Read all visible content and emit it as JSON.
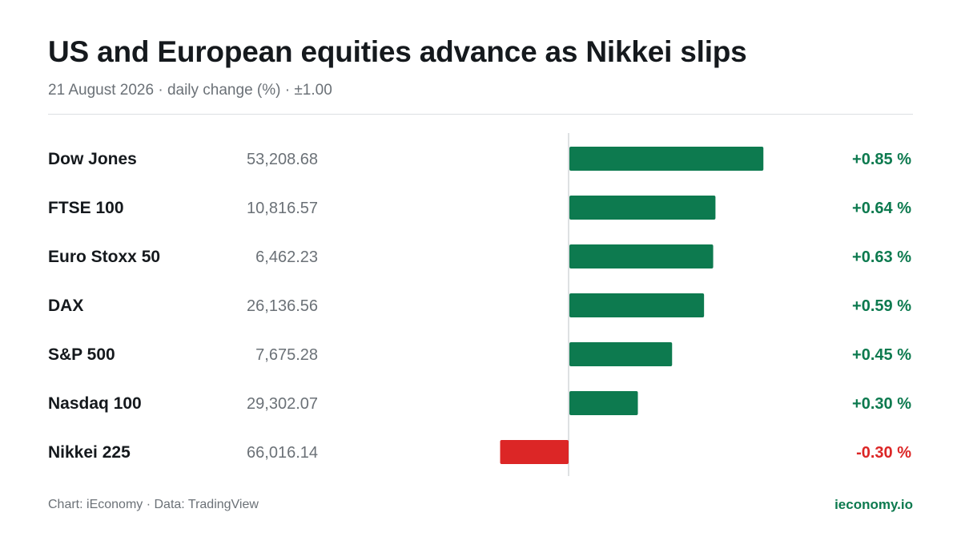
{
  "header": {
    "title": "US and European equities advance as Nikkei slips",
    "subtitle": "21 August 2026 · daily change (%) · ±1.00"
  },
  "footer": {
    "credit": "Chart: iEconomy · Data: TradingView",
    "brand": "ieconomy.io"
  },
  "colors": {
    "positive": "#0d7a4f",
    "negative": "#dc2626",
    "axis": "#d4d7da"
  },
  "chart_data": {
    "type": "bar",
    "orientation": "horizontal",
    "xlim": [
      -1.0,
      1.0
    ],
    "unit": "%",
    "rows": [
      {
        "name": "Dow Jones",
        "level": "53,208.68",
        "change": 0.85,
        "label": "+0.85 %"
      },
      {
        "name": "FTSE 100",
        "level": "10,816.57",
        "change": 0.64,
        "label": "+0.64 %"
      },
      {
        "name": "Euro Stoxx 50",
        "level": "6,462.23",
        "change": 0.63,
        "label": "+0.63 %"
      },
      {
        "name": "DAX",
        "level": "26,136.56",
        "change": 0.59,
        "label": "+0.59 %"
      },
      {
        "name": "S&P 500",
        "level": "7,675.28",
        "change": 0.45,
        "label": "+0.45 %"
      },
      {
        "name": "Nasdaq 100",
        "level": "29,302.07",
        "change": 0.3,
        "label": "+0.30 %"
      },
      {
        "name": "Nikkei 225",
        "level": "66,016.14",
        "change": -0.3,
        "label": "-0.30 %"
      }
    ]
  }
}
